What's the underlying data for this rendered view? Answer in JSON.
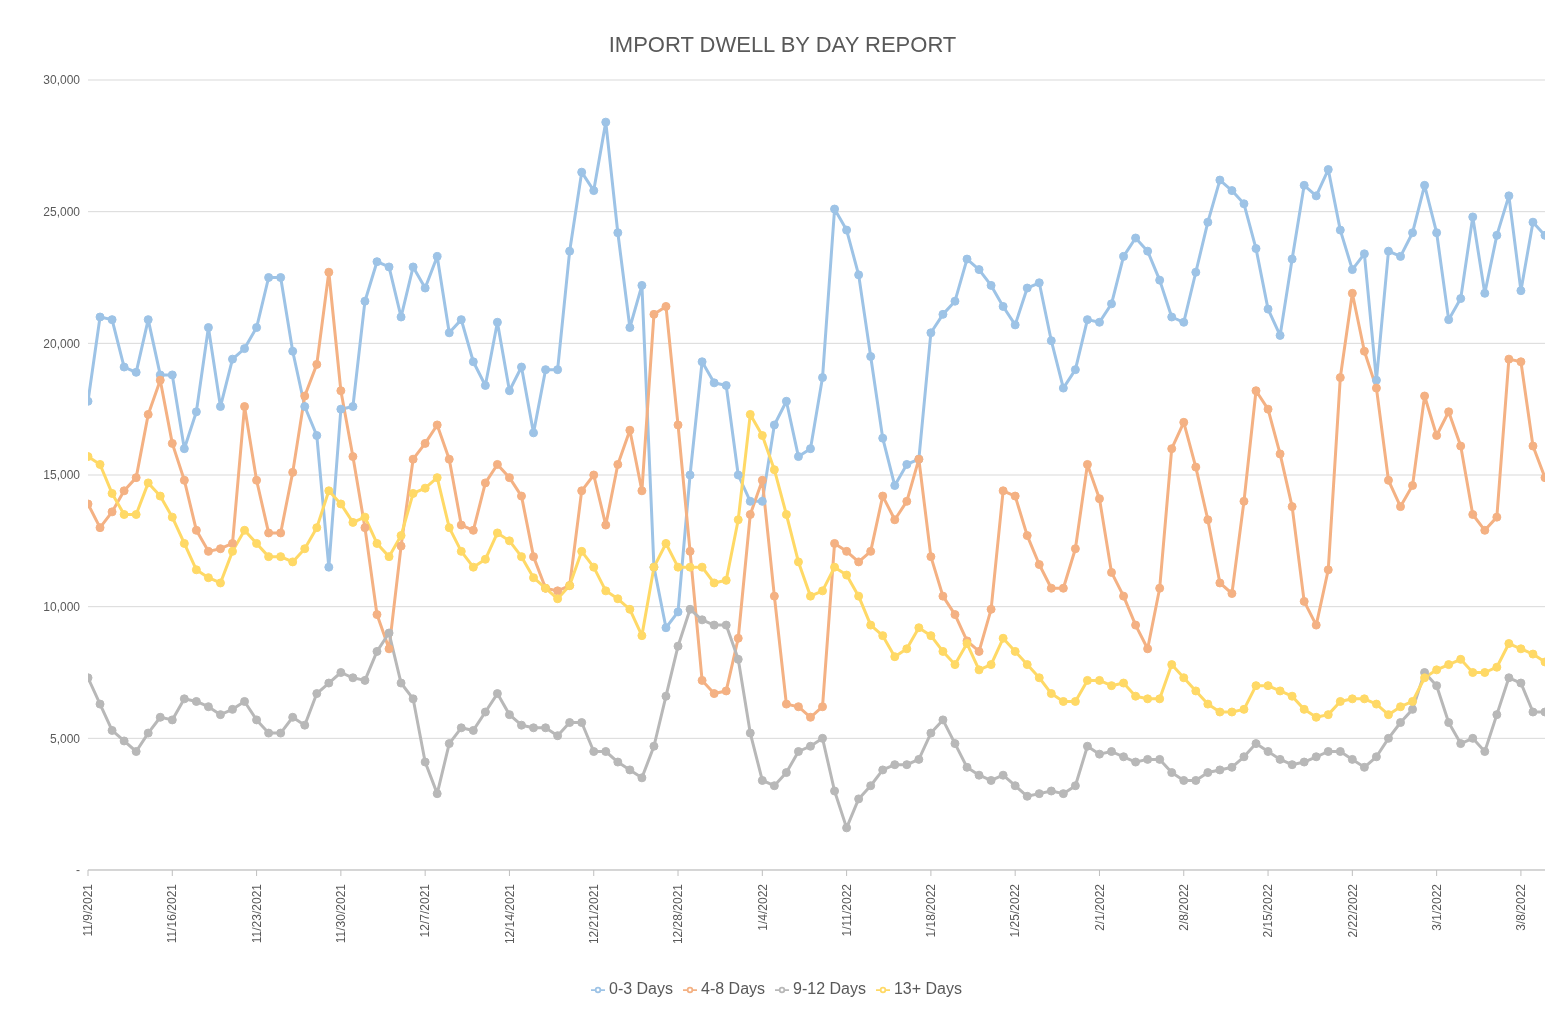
{
  "chart_data": {
    "type": "line",
    "title": "IMPORT DWELL BY DAY REPORT",
    "x": [
      "2021-11-09",
      "2021-11-10",
      "2021-11-11",
      "2021-11-12",
      "2021-11-13",
      "2021-11-14",
      "2021-11-15",
      "2021-11-16",
      "2021-11-17",
      "2021-11-18",
      "2021-11-19",
      "2021-11-20",
      "2021-11-21",
      "2021-11-22",
      "2021-11-23",
      "2021-11-24",
      "2021-11-25",
      "2021-11-26",
      "2021-11-27",
      "2021-11-28",
      "2021-11-29",
      "2021-11-30",
      "2021-12-01",
      "2021-12-02",
      "2021-12-03",
      "2021-12-04",
      "2021-12-05",
      "2021-12-06",
      "2021-12-07",
      "2021-12-08",
      "2021-12-09",
      "2021-12-10",
      "2021-12-11",
      "2021-12-12",
      "2021-12-13",
      "2021-12-14",
      "2021-12-15",
      "2021-12-16",
      "2021-12-17",
      "2021-12-18",
      "2021-12-19",
      "2021-12-20",
      "2021-12-21",
      "2021-12-22",
      "2021-12-23",
      "2021-12-24",
      "2021-12-25",
      "2021-12-26",
      "2021-12-27",
      "2021-12-28",
      "2021-12-29",
      "2021-12-30",
      "2021-12-31",
      "2022-01-01",
      "2022-01-02",
      "2022-01-03",
      "2022-01-04",
      "2022-01-05",
      "2022-01-06",
      "2022-01-07",
      "2022-01-08",
      "2022-01-09",
      "2022-01-10",
      "2022-01-11",
      "2022-01-12",
      "2022-01-13",
      "2022-01-14",
      "2022-01-15",
      "2022-01-16",
      "2022-01-17",
      "2022-01-18",
      "2022-01-19",
      "2022-01-20",
      "2022-01-21",
      "2022-01-22",
      "2022-01-23",
      "2022-01-24",
      "2022-01-25",
      "2022-01-26",
      "2022-01-27",
      "2022-01-28",
      "2022-01-29",
      "2022-01-30",
      "2022-01-31",
      "2022-02-01",
      "2022-02-02",
      "2022-02-03",
      "2022-02-04",
      "2022-02-05",
      "2022-02-06",
      "2022-02-07",
      "2022-02-08",
      "2022-02-09",
      "2022-02-10",
      "2022-02-11",
      "2022-02-12",
      "2022-02-13",
      "2022-02-14",
      "2022-02-15",
      "2022-02-16",
      "2022-02-17",
      "2022-02-18",
      "2022-02-19",
      "2022-02-20",
      "2022-02-21",
      "2022-02-22",
      "2022-02-23",
      "2022-02-24",
      "2022-02-25",
      "2022-02-26",
      "2022-02-27",
      "2022-02-28",
      "2022-03-01",
      "2022-03-02",
      "2022-03-03",
      "2022-03-04",
      "2022-03-05",
      "2022-03-06",
      "2022-03-07",
      "2022-03-08",
      "2022-03-09",
      "2022-03-10"
    ],
    "series": [
      {
        "name": "0-3 Days",
        "color": "#9dc3e6",
        "values": [
          17800,
          21000,
          20900,
          19100,
          18900,
          20900,
          18800,
          18800,
          16000,
          17400,
          20600,
          17600,
          19400,
          19800,
          20600,
          22500,
          22500,
          19700,
          17600,
          16500,
          11500,
          17500,
          17600,
          21600,
          23100,
          22900,
          21000,
          22900,
          22100,
          23300,
          20400,
          20900,
          19300,
          18400,
          20800,
          18200,
          19100,
          16600,
          19000,
          19000,
          23500,
          26500,
          25800,
          28400,
          24200,
          20600,
          22200,
          11500,
          9200,
          9800,
          15000,
          19300,
          18500,
          18400,
          15000,
          14000,
          14000,
          16900,
          17800,
          15700,
          16000,
          18700,
          25100,
          24300,
          22600,
          19500,
          16400,
          14600,
          15400,
          15600,
          20400,
          21100,
          21600,
          23200,
          22800,
          22200,
          21400,
          20700,
          22100,
          22300,
          20100,
          18300,
          19000,
          20900,
          20800,
          21500,
          23300,
          24000,
          23500,
          22400,
          21000,
          20800,
          22700,
          24600,
          26200,
          25800,
          25300,
          23600,
          21300,
          20300,
          23200,
          26000,
          25600,
          26600,
          24300,
          22800,
          23400,
          18600,
          23500,
          23300,
          24200,
          26000,
          24200,
          20900,
          21700,
          24800,
          21900,
          24100,
          25600,
          22000,
          24600,
          24100
        ]
      },
      {
        "name": "4-8 Days",
        "color": "#f4b183",
        "values": [
          13900,
          13000,
          13600,
          14400,
          14900,
          17300,
          18600,
          16200,
          14800,
          12900,
          12100,
          12200,
          12400,
          17600,
          14800,
          12800,
          12800,
          15100,
          18000,
          19200,
          22700,
          18200,
          15700,
          13000,
          9700,
          8400,
          12300,
          15600,
          16200,
          16900,
          15600,
          13100,
          12900,
          14700,
          15400,
          14900,
          14200,
          11900,
          10700,
          10600,
          10800,
          14400,
          15000,
          13100,
          15400,
          16700,
          14400,
          21100,
          21400,
          16900,
          12100,
          7200,
          6700,
          6800,
          8800,
          13500,
          14800,
          10400,
          6300,
          6200,
          5800,
          6200,
          12400,
          12100,
          11700,
          12100,
          14200,
          13300,
          14000,
          15600,
          11900,
          10400,
          9700,
          8700,
          8300,
          9900,
          14400,
          14200,
          12700,
          11600,
          10700,
          10700,
          12200,
          15400,
          14100,
          11300,
          10400,
          9300,
          8400,
          10700,
          16000,
          17000,
          15300,
          13300,
          10900,
          10500,
          14000,
          18200,
          17500,
          15800,
          13800,
          10200,
          9300,
          11400,
          18700,
          21900,
          19700,
          18300,
          14800,
          13800,
          14600,
          18000,
          16500,
          17400,
          16100,
          13500,
          12900,
          13400,
          19400,
          19300,
          16100,
          14900
        ]
      },
      {
        "name": "9-12 Days",
        "color": "#b8b8b8",
        "values": [
          7300,
          6300,
          5300,
          4900,
          4500,
          5200,
          5800,
          5700,
          6500,
          6400,
          6200,
          5900,
          6100,
          6400,
          5700,
          5200,
          5200,
          5800,
          5500,
          6700,
          7100,
          7500,
          7300,
          7200,
          8300,
          9000,
          7100,
          6500,
          4100,
          2900,
          4800,
          5400,
          5300,
          6000,
          6700,
          5900,
          5500,
          5400,
          5400,
          5100,
          5600,
          5600,
          4500,
          4500,
          4100,
          3800,
          3500,
          4700,
          6600,
          8500,
          9900,
          9500,
          9300,
          9300,
          8000,
          5200,
          3400,
          3200,
          3700,
          4500,
          4700,
          5000,
          3000,
          1600,
          2700,
          3200,
          3800,
          4000,
          4000,
          4200,
          5200,
          5700,
          4800,
          3900,
          3600,
          3400,
          3600,
          3200,
          2800,
          2900,
          3000,
          2900,
          3200,
          4700,
          4400,
          4500,
          4300,
          4100,
          4200,
          4200,
          3700,
          3400,
          3400,
          3700,
          3800,
          3900,
          4300,
          4800,
          4500,
          4200,
          4000,
          4100,
          4300,
          4500,
          4500,
          4200,
          3900,
          4300,
          5000,
          5600,
          6100,
          7500,
          7000,
          5600,
          4800,
          5000,
          4500,
          5900,
          7300,
          7100,
          6000,
          6000
        ]
      },
      {
        "name": "13+ Days",
        "color": "#ffd966",
        "values": [
          15700,
          15400,
          14300,
          13500,
          13500,
          14700,
          14200,
          13400,
          12400,
          11400,
          11100,
          10900,
          12100,
          12900,
          12400,
          11900,
          11900,
          11700,
          12200,
          13000,
          14400,
          13900,
          13200,
          13400,
          12400,
          11900,
          12700,
          14300,
          14500,
          14900,
          13000,
          12100,
          11500,
          11800,
          12800,
          12500,
          11900,
          11100,
          10700,
          10300,
          10800,
          12100,
          11500,
          10600,
          10300,
          9900,
          8900,
          11500,
          12400,
          11500,
          11500,
          11500,
          10900,
          11000,
          13300,
          17300,
          16500,
          15200,
          13500,
          11700,
          10400,
          10600,
          11500,
          11200,
          10400,
          9300,
          8900,
          8100,
          8400,
          9200,
          8900,
          8300,
          7800,
          8600,
          7600,
          7800,
          8800,
          8300,
          7800,
          7300,
          6700,
          6400,
          6400,
          7200,
          7200,
          7000,
          7100,
          6600,
          6500,
          6500,
          7800,
          7300,
          6800,
          6300,
          6000,
          6000,
          6100,
          7000,
          7000,
          6800,
          6600,
          6100,
          5800,
          5900,
          6400,
          6500,
          6500,
          6300,
          5900,
          6200,
          6400,
          7300,
          7600,
          7800,
          8000,
          7500,
          7500,
          7700,
          8600,
          8400,
          8200,
          7900
        ]
      }
    ],
    "xlim": [
      "2021-11-09",
      "2022-03-10"
    ],
    "xticks": [
      {
        "value": "2021-11-09",
        "label": "11/9/2021"
      },
      {
        "value": "2021-11-16",
        "label": "11/16/2021"
      },
      {
        "value": "2021-11-23",
        "label": "11/23/2021"
      },
      {
        "value": "2021-11-30",
        "label": "11/30/2021"
      },
      {
        "value": "2021-12-07",
        "label": "12/7/2021"
      },
      {
        "value": "2021-12-14",
        "label": "12/14/2021"
      },
      {
        "value": "2021-12-21",
        "label": "12/21/2021"
      },
      {
        "value": "2021-12-28",
        "label": "12/28/2021"
      },
      {
        "value": "2022-01-04",
        "label": "1/4/2022"
      },
      {
        "value": "2022-01-11",
        "label": "1/11/2022"
      },
      {
        "value": "2022-01-18",
        "label": "1/18/2022"
      },
      {
        "value": "2022-01-25",
        "label": "1/25/2022"
      },
      {
        "value": "2022-02-01",
        "label": "2/1/2022"
      },
      {
        "value": "2022-02-08",
        "label": "2/8/2022"
      },
      {
        "value": "2022-02-15",
        "label": "2/15/2022"
      },
      {
        "value": "2022-02-22",
        "label": "2/22/2022"
      },
      {
        "value": "2022-03-01",
        "label": "3/1/2022"
      },
      {
        "value": "2022-03-08",
        "label": "3/8/2022"
      }
    ],
    "ylim": [
      0,
      30000
    ],
    "yticks": [
      {
        "value": 0,
        "label": "-"
      },
      {
        "value": 5000,
        "label": "5,000"
      },
      {
        "value": 10000,
        "label": "10,000"
      },
      {
        "value": 15000,
        "label": "15,000"
      },
      {
        "value": 20000,
        "label": "20,000"
      },
      {
        "value": 25000,
        "label": "25,000"
      },
      {
        "value": 30000,
        "label": "30,000"
      }
    ],
    "grid": "y",
    "legend": "bottom",
    "marker": "circle",
    "line_style": "solid"
  }
}
